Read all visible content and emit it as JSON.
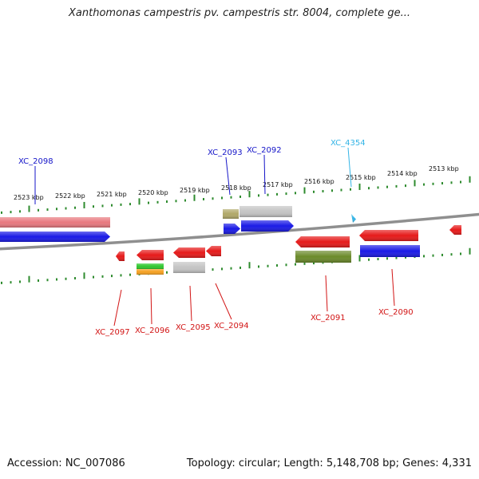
{
  "title": "Xanthomonas campestris pv. campestris str. 8004, complete ge...",
  "footer": {
    "accession": "Accession: NC_007086",
    "summary": "Topology: circular; Length: 5,148,708 bp; Genes: 4,331"
  },
  "colors": {
    "backbone": "#8f8f8f",
    "tick": "#2e8b2e",
    "forward_label": "#1414c8",
    "reverse_label": "#d21414",
    "other_label": "#33b4e6"
  },
  "ruler_labels": [
    "2523 kbp",
    "2522 kbp",
    "2521 kbp",
    "2520 kbp",
    "2519 kbp",
    "2518 kbp",
    "2517 kbp",
    "2516 kbp",
    "2515 kbp",
    "2514 kbp",
    "2513 kbp"
  ],
  "gene_labels": [
    {
      "id": "XC_2098",
      "strand": "forward"
    },
    {
      "id": "XC_2093",
      "strand": "forward"
    },
    {
      "id": "XC_2092",
      "strand": "forward"
    },
    {
      "id": "XC_4354",
      "strand": "other"
    },
    {
      "id": "XC_2097",
      "strand": "reverse"
    },
    {
      "id": "XC_2096",
      "strand": "reverse"
    },
    {
      "id": "XC_2095",
      "strand": "reverse"
    },
    {
      "id": "XC_2094",
      "strand": "reverse"
    },
    {
      "id": "XC_2091",
      "strand": "reverse"
    },
    {
      "id": "XC_2090",
      "strand": "reverse"
    }
  ],
  "features": [
    {
      "name": "feature-salmon-forward",
      "color": "#e8787e"
    },
    {
      "name": "feature-blue-forward-long",
      "color": "#1a1ae6"
    },
    {
      "name": "feature-khaki",
      "color": "#b0a868"
    },
    {
      "name": "feature-gray-forward",
      "color": "#c4c4c4"
    },
    {
      "name": "feature-blue-xc2093",
      "color": "#1a1ae6"
    },
    {
      "name": "feature-blue-xc2092",
      "color": "#1a1ae6"
    },
    {
      "name": "feature-xc4354-marker",
      "color": "#33b4e6"
    },
    {
      "name": "feature-red-xc2097",
      "color": "#e61a1a"
    },
    {
      "name": "feature-red-xc2096",
      "color": "#e61a1a"
    },
    {
      "name": "feature-green-xc2096",
      "color": "#2ec82e"
    },
    {
      "name": "feature-orange-xc2096",
      "color": "#f5a020"
    },
    {
      "name": "feature-red-xc2095",
      "color": "#e61a1a"
    },
    {
      "name": "feature-gray-xc2095",
      "color": "#c4c4c4"
    },
    {
      "name": "feature-red-xc2094",
      "color": "#e61a1a"
    },
    {
      "name": "feature-red-xc2091",
      "color": "#e61a1a"
    },
    {
      "name": "feature-olive-xc2091",
      "color": "#6b8a2a"
    },
    {
      "name": "feature-red-xc2090",
      "color": "#e61a1a"
    },
    {
      "name": "feature-blue-xc2090",
      "color": "#1a1ae6"
    },
    {
      "name": "feature-red-right-edge",
      "color": "#e61a1a"
    }
  ]
}
